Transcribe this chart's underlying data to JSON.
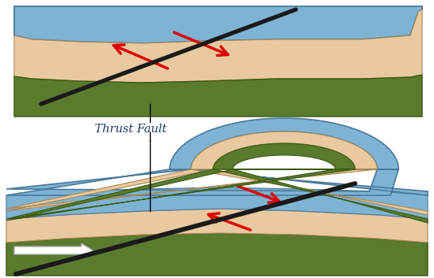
{
  "bg_color": "#ffffff",
  "blue_color": "#7eb3d4",
  "tan_color": "#e8c9a0",
  "green_color": "#5a7a2e",
  "fault_color": "#1a1a1a",
  "arrow_color": "#dd0000",
  "label_color": "#1a3a6a",
  "label_text": "Thrust Fault",
  "label_fontsize": 10.5,
  "edge_blue": "#4a7a9a",
  "edge_tan": "#aa8855",
  "edge_green": "#3a5a10"
}
